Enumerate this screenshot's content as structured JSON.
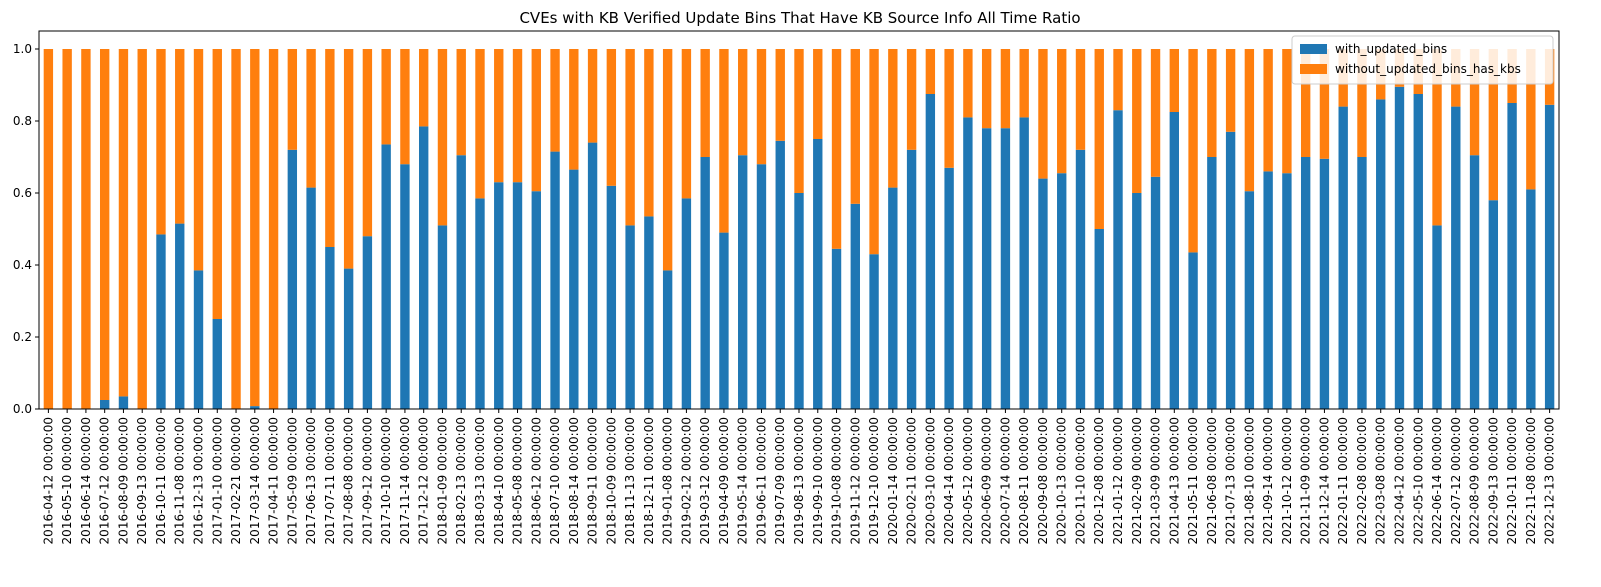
{
  "chart_data": {
    "type": "bar",
    "stacked": true,
    "title": "CVEs with KB Verified Update Bins That Have KB Source Info All Time Ratio",
    "xlabel": "",
    "ylabel": "",
    "ylim": [
      0,
      1.05
    ],
    "yticks": [
      "0.0",
      "0.2",
      "0.4",
      "0.6",
      "0.8",
      "1.0"
    ],
    "legend_position": "top-right",
    "categories": [
      "2016-04-12 00:00:00",
      "2016-05-10 00:00:00",
      "2016-06-14 00:00:00",
      "2016-07-12 00:00:00",
      "2016-08-09 00:00:00",
      "2016-09-13 00:00:00",
      "2016-10-11 00:00:00",
      "2016-11-08 00:00:00",
      "2016-12-13 00:00:00",
      "2017-01-10 00:00:00",
      "2017-02-21 00:00:00",
      "2017-03-14 00:00:00",
      "2017-04-11 00:00:00",
      "2017-05-09 00:00:00",
      "2017-06-13 00:00:00",
      "2017-07-11 00:00:00",
      "2017-08-08 00:00:00",
      "2017-09-12 00:00:00",
      "2017-10-10 00:00:00",
      "2017-11-14 00:00:00",
      "2017-12-12 00:00:00",
      "2018-01-09 00:00:00",
      "2018-02-13 00:00:00",
      "2018-03-13 00:00:00",
      "2018-04-10 00:00:00",
      "2018-05-08 00:00:00",
      "2018-06-12 00:00:00",
      "2018-07-10 00:00:00",
      "2018-08-14 00:00:00",
      "2018-09-11 00:00:00",
      "2018-10-09 00:00:00",
      "2018-11-13 00:00:00",
      "2018-12-11 00:00:00",
      "2019-01-08 00:00:00",
      "2019-02-12 00:00:00",
      "2019-03-12 00:00:00",
      "2019-04-09 00:00:00",
      "2019-05-14 00:00:00",
      "2019-06-11 00:00:00",
      "2019-07-09 00:00:00",
      "2019-08-13 00:00:00",
      "2019-09-10 00:00:00",
      "2019-10-08 00:00:00",
      "2019-11-12 00:00:00",
      "2019-12-10 00:00:00",
      "2020-01-14 00:00:00",
      "2020-02-11 00:00:00",
      "2020-03-10 00:00:00",
      "2020-04-14 00:00:00",
      "2020-05-12 00:00:00",
      "2020-06-09 00:00:00",
      "2020-07-14 00:00:00",
      "2020-08-11 00:00:00",
      "2020-09-08 00:00:00",
      "2020-10-13 00:00:00",
      "2020-11-10 00:00:00",
      "2020-12-08 00:00:00",
      "2021-01-12 00:00:00",
      "2021-02-09 00:00:00",
      "2021-03-09 00:00:00",
      "2021-04-13 00:00:00",
      "2021-05-11 00:00:00",
      "2021-06-08 00:00:00",
      "2021-07-13 00:00:00",
      "2021-08-10 00:00:00",
      "2021-09-14 00:00:00",
      "2021-10-12 00:00:00",
      "2021-11-09 00:00:00",
      "2021-12-14 00:00:00",
      "2022-01-11 00:00:00",
      "2022-02-08 00:00:00",
      "2022-03-08 00:00:00",
      "2022-04-12 00:00:00",
      "2022-05-10 00:00:00",
      "2022-06-14 00:00:00",
      "2022-07-12 00:00:00",
      "2022-08-09 00:00:00",
      "2022-09-13 00:00:00",
      "2022-10-11 00:00:00",
      "2022-11-08 00:00:00",
      "2022-12-13 00:00:00"
    ],
    "series": [
      {
        "name": "with_updated_bins",
        "color": "#1f77b4",
        "values": [
          0.0,
          0.0,
          0.0,
          0.025,
          0.035,
          0.0,
          0.485,
          0.515,
          0.385,
          0.25,
          0.0,
          0.008,
          0.0,
          0.72,
          0.615,
          0.45,
          0.39,
          0.48,
          0.735,
          0.68,
          0.785,
          0.51,
          0.705,
          0.585,
          0.63,
          0.63,
          0.605,
          0.715,
          0.665,
          0.74,
          0.62,
          0.51,
          0.535,
          0.385,
          0.585,
          0.7,
          0.49,
          0.705,
          0.68,
          0.745,
          0.6,
          0.75,
          0.445,
          0.57,
          0.43,
          0.615,
          0.72,
          0.875,
          0.67,
          0.81,
          0.78,
          0.78,
          0.81,
          0.64,
          0.655,
          0.72,
          0.5,
          0.83,
          0.6,
          0.645,
          0.825,
          0.435,
          0.7,
          0.77,
          0.605,
          0.66,
          0.655,
          0.7,
          0.695,
          0.84,
          0.7,
          0.86,
          0.895,
          0.875,
          0.51,
          0.84,
          0.705,
          0.58,
          0.85,
          0.61,
          0.845
        ]
      },
      {
        "name": "without_updated_bins_has_kbs",
        "color": "#ff7f0e",
        "values": [
          1.0,
          1.0,
          1.0,
          0.975,
          0.965,
          1.0,
          0.515,
          0.485,
          0.615,
          0.75,
          1.0,
          0.992,
          1.0,
          0.28,
          0.385,
          0.55,
          0.61,
          0.52,
          0.265,
          0.32,
          0.215,
          0.49,
          0.295,
          0.415,
          0.37,
          0.37,
          0.395,
          0.285,
          0.335,
          0.26,
          0.38,
          0.49,
          0.465,
          0.615,
          0.415,
          0.3,
          0.51,
          0.295,
          0.32,
          0.255,
          0.4,
          0.25,
          0.555,
          0.43,
          0.57,
          0.385,
          0.28,
          0.125,
          0.33,
          0.19,
          0.22,
          0.22,
          0.19,
          0.36,
          0.345,
          0.28,
          0.5,
          0.17,
          0.4,
          0.355,
          0.175,
          0.565,
          0.3,
          0.23,
          0.395,
          0.34,
          0.345,
          0.3,
          0.305,
          0.16,
          0.3,
          0.14,
          0.105,
          0.125,
          0.49,
          0.16,
          0.295,
          0.42,
          0.15,
          0.39,
          0.155
        ]
      }
    ]
  }
}
